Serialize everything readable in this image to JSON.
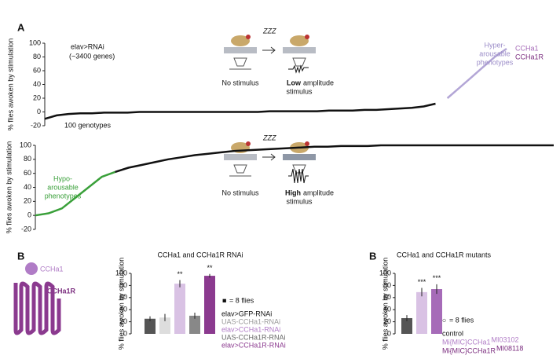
{
  "panel_labels": [
    "A",
    "B",
    "B"
  ],
  "diagrams": [
    {
      "zzz": "ZZZ",
      "left": "No stimulus",
      "right_bold": "Low",
      "right": "amplitude",
      "right_line2": "stimulus"
    },
    {
      "zzz": "ZZZ",
      "left": "No stimulus",
      "right_bold": "High",
      "right": "amplitude",
      "right_line2": "stimulus"
    }
  ],
  "receptor": {
    "ligand": "CCHa1",
    "receptor": "CCHa1R"
  },
  "chart_data": [
    {
      "type": "line",
      "ylabel": "% flies awoken by stimulation",
      "ylim": [
        -20,
        100
      ],
      "yticks": [
        -20,
        0,
        20,
        40,
        60,
        80,
        100
      ],
      "series": [
        {
          "color": "#111111",
          "values": [
            -10,
            -5,
            -3,
            -2,
            -2,
            -1,
            -1,
            -1,
            0,
            0,
            0,
            0,
            0,
            0,
            0,
            0,
            0,
            0,
            0,
            1,
            1,
            1,
            1,
            1,
            2,
            2,
            2,
            3,
            3,
            4,
            5,
            6,
            8,
            12,
            null,
            null,
            null,
            null,
            null,
            null
          ]
        },
        {
          "color": "#b3a6d6",
          "values": [
            null,
            null,
            null,
            null,
            null,
            null,
            null,
            null,
            null,
            null,
            null,
            null,
            null,
            null,
            null,
            null,
            null,
            null,
            null,
            null,
            null,
            null,
            null,
            null,
            null,
            null,
            null,
            null,
            null,
            null,
            null,
            null,
            null,
            null,
            20,
            35,
            50,
            65,
            80,
            92
          ]
        }
      ],
      "annotations": [
        {
          "text": "elav>RNAi",
          "color": "#111111"
        },
        {
          "text": "(~3400 genes)",
          "color": "#111111"
        },
        {
          "text": "100 genotypes",
          "color": "#111111"
        },
        {
          "text": "Hyper-",
          "color": "#9b8cc8"
        },
        {
          "text": "arousable",
          "color": "#9b8cc8"
        },
        {
          "text": "phenotypes",
          "color": "#9b8cc8"
        },
        {
          "text": "CCHa1",
          "color": "#a66bb8"
        },
        {
          "text": "CCHa1R",
          "color": "#7b2d7f"
        }
      ]
    },
    {
      "type": "line",
      "ylabel": "% flies awoken by stimulation",
      "ylim": [
        -20,
        100
      ],
      "yticks": [
        -20,
        0,
        20,
        40,
        60,
        80,
        100
      ],
      "series": [
        {
          "color": "#3aa03a",
          "values": [
            0,
            3,
            10,
            25,
            40,
            55,
            62,
            null,
            null,
            null,
            null,
            null,
            null,
            null,
            null,
            null,
            null,
            null,
            null,
            null,
            null,
            null,
            null,
            null,
            null,
            null,
            null,
            null,
            null,
            null,
            null,
            null,
            null,
            null,
            null,
            null,
            null,
            null,
            null,
            null
          ]
        },
        {
          "color": "#111111",
          "values": [
            null,
            null,
            null,
            null,
            null,
            null,
            62,
            68,
            72,
            76,
            80,
            83,
            86,
            88,
            90,
            92,
            93,
            94,
            95,
            96,
            97,
            98,
            98,
            99,
            99,
            99,
            100,
            100,
            100,
            100,
            100,
            100,
            100,
            100,
            100,
            100,
            100,
            100,
            100,
            100
          ]
        }
      ],
      "annotations": [
        {
          "text": "Hypo-",
          "color": "#3aa03a"
        },
        {
          "text": "arousable",
          "color": "#3aa03a"
        },
        {
          "text": "phenotypes",
          "color": "#3aa03a"
        }
      ]
    },
    {
      "type": "bar",
      "title": "CCHa1 and CCHa1R RNAi",
      "ylabel": "% flies awoken by stimulation",
      "ylim": [
        0,
        100
      ],
      "yticks": [
        0,
        20,
        40,
        60,
        80,
        100
      ],
      "categories": [
        "elav>GFP-RNAi",
        "UAS-CCHa1-RNAi",
        "elav>CCHa1-RNAi",
        "UAS-CCHa1R-RNAi",
        "elav>CCHa1R-RNAi"
      ],
      "category_superscripts": [
        null,
        null,
        null,
        null,
        null
      ],
      "values": [
        25,
        27,
        83,
        30,
        96
      ],
      "errors": [
        4,
        6,
        6,
        5,
        3
      ],
      "colors": [
        "#555555",
        "#dddddd",
        "#d9c2e4",
        "#888888",
        "#8b3a8f"
      ],
      "label_colors": [
        "#111111",
        "#999999",
        "#b07cc6",
        "#666666",
        "#8b3a8f"
      ],
      "significance": [
        null,
        null,
        "**",
        null,
        "**"
      ],
      "dot_note": {
        "symbol": "■",
        "text": "= 8 flies"
      }
    },
    {
      "type": "bar",
      "title": "CCHa1 and CCHa1R mutants",
      "ylabel": "% flies awoken by stimulation",
      "ylim": [
        0,
        100
      ],
      "yticks": [
        0,
        20,
        40,
        60,
        80,
        100
      ],
      "categories": [
        "control",
        "Mi{MIC}CCHa1",
        "Mi{MIC}CCHa1R"
      ],
      "category_superscripts": [
        null,
        "MI03102",
        "MI08118"
      ],
      "values": [
        26,
        69,
        74
      ],
      "errors": [
        5,
        7,
        8
      ],
      "colors": [
        "#555555",
        "#d9c2e4",
        "#a66bb8"
      ],
      "label_colors": [
        "#111111",
        "#b07cc6",
        "#7b2d7f"
      ],
      "significance": [
        null,
        "***",
        "***"
      ],
      "dot_note": {
        "symbol": "○",
        "text": "= 8 flies"
      }
    }
  ]
}
